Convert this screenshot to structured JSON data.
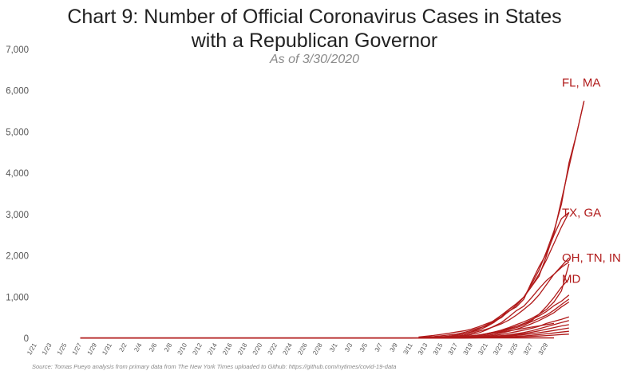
{
  "chart_data": {
    "type": "line",
    "title_lines": [
      "Chart 9: Number of Official Coronavirus Cases in States",
      "with a Republican Governor"
    ],
    "subtitle": "As of 3/30/2020",
    "source": "Source: Tomas Pueyo analysis from primary data from The New York Times uploaded to Github: https://github.com/nytimes/covid-19-data",
    "x_categories": [
      "1/21",
      "1/22",
      "1/23",
      "1/24",
      "1/25",
      "1/26",
      "1/27",
      "1/28",
      "1/29",
      "1/30",
      "1/31",
      "2/1",
      "2/2",
      "2/3",
      "2/4",
      "2/5",
      "2/6",
      "2/7",
      "2/8",
      "2/9",
      "2/10",
      "2/11",
      "2/12",
      "2/13",
      "2/14",
      "2/15",
      "2/16",
      "2/17",
      "2/18",
      "2/19",
      "2/20",
      "2/21",
      "2/22",
      "2/23",
      "2/24",
      "2/25",
      "2/26",
      "2/27",
      "2/28",
      "2/29",
      "3/1",
      "3/2",
      "3/3",
      "3/4",
      "3/5",
      "3/6",
      "3/7",
      "3/8",
      "3/9",
      "3/10",
      "3/11",
      "3/12",
      "3/13",
      "3/14",
      "3/15",
      "3/16",
      "3/17",
      "3/18",
      "3/19",
      "3/20",
      "3/21",
      "3/22",
      "3/23",
      "3/24",
      "3/25",
      "3/26",
      "3/27",
      "3/28",
      "3/29",
      "3/30"
    ],
    "x_tick_labels": [
      "1/21",
      "1/23",
      "1/25",
      "1/27",
      "1/29",
      "1/31",
      "2/2",
      "2/4",
      "2/6",
      "2/8",
      "2/10",
      "2/12",
      "2/14",
      "2/16",
      "2/18",
      "2/20",
      "2/22",
      "2/24",
      "2/26",
      "2/28",
      "3/1",
      "3/3",
      "3/5",
      "3/7",
      "3/9",
      "3/11",
      "3/13",
      "3/15",
      "3/17",
      "3/19",
      "3/21",
      "3/23",
      "3/25",
      "3/27",
      "3/29"
    ],
    "y_ticks": [
      0,
      1000,
      2000,
      3000,
      4000,
      5000,
      6000,
      7000
    ],
    "y_tick_labels": [
      "0",
      "1,000",
      "2,000",
      "3,000",
      "4,000",
      "5,000",
      "6,000",
      "7,000"
    ],
    "ylim": [
      0,
      7000
    ],
    "grid": false,
    "line_color": "#b01a1a",
    "annotations": [
      {
        "text": "FL, MA",
        "value": 6200
      },
      {
        "text": "TX, GA",
        "value": 3050
      },
      {
        "text": "OH, TN, IN",
        "value": 1950
      },
      {
        "text": "MD",
        "value": 1440
      }
    ],
    "series": [
      {
        "start": 51,
        "values": [
          10,
          15,
          20,
          30,
          45,
          70,
          110,
          160,
          230,
          320,
          430,
          560,
          700,
          830,
          1000,
          1250,
          1500,
          2000,
          2550,
          3350,
          4150,
          4950,
          5750
        ]
      },
      {
        "start": 51,
        "values": [
          30,
          50,
          70,
          95,
          120,
          150,
          180,
          220,
          280,
          350,
          420,
          520,
          650,
          800,
          1000,
          1300,
          1650,
          2100,
          2600,
          3250,
          4250,
          4950,
          5750
        ]
      },
      {
        "start": 51,
        "values": [
          20,
          30,
          40,
          60,
          80,
          100,
          140,
          190,
          250,
          300,
          400,
          500,
          660,
          760,
          950,
          1350,
          1730,
          2050,
          2500,
          2900,
          3050
        ]
      },
      {
        "start": 51,
        "values": [
          10,
          15,
          25,
          35,
          50,
          80,
          110,
          150,
          200,
          280,
          380,
          520,
          700,
          840,
          1000,
          1250,
          1550,
          1900,
          2300,
          2700,
          3050
        ]
      },
      {
        "start": 51,
        "values": [
          5,
          10,
          15,
          20,
          30,
          50,
          80,
          120,
          170,
          220,
          280,
          350,
          440,
          560,
          700,
          850,
          1050,
          1300,
          1550,
          1750,
          1950
        ]
      },
      {
        "start": 51,
        "values": [
          5,
          10,
          15,
          20,
          30,
          40,
          60,
          90,
          130,
          200,
          290,
          380,
          520,
          670,
          780,
          980,
          1200,
          1400,
          1550,
          1720,
          1850
        ]
      },
      {
        "start": 51,
        "values": [
          5,
          8,
          12,
          16,
          22,
          30,
          40,
          55,
          80,
          110,
          150,
          200,
          260,
          330,
          400,
          480,
          580,
          700,
          880,
          1150,
          1800
        ]
      },
      {
        "start": 51,
        "values": [
          5,
          10,
          15,
          20,
          25,
          30,
          40,
          60,
          80,
          110,
          150,
          190,
          240,
          290,
          350,
          420,
          580,
          770,
          990,
          1240,
          1440
        ]
      },
      {
        "start": 51,
        "values": [
          5,
          8,
          10,
          15,
          20,
          25,
          35,
          50,
          70,
          100,
          140,
          180,
          230,
          290,
          360,
          450,
          540,
          650,
          790,
          900,
          1050
        ]
      },
      {
        "start": 51,
        "values": [
          5,
          8,
          10,
          12,
          18,
          25,
          35,
          50,
          70,
          95,
          130,
          170,
          210,
          260,
          320,
          400,
          480,
          560,
          680,
          820,
          950
        ]
      },
      {
        "start": 51,
        "values": [
          3,
          5,
          8,
          10,
          14,
          18,
          25,
          35,
          50,
          70,
          95,
          130,
          170,
          220,
          280,
          350,
          430,
          520,
          620,
          760,
          880
        ]
      },
      {
        "start": 51,
        "values": [
          2,
          4,
          6,
          8,
          10,
          14,
          18,
          25,
          35,
          50,
          70,
          95,
          125,
          160,
          200,
          240,
          290,
          360,
          410,
          460,
          520
        ]
      },
      {
        "start": 51,
        "values": [
          2,
          3,
          5,
          7,
          9,
          12,
          15,
          20,
          28,
          38,
          50,
          65,
          85,
          110,
          140,
          180,
          230,
          280,
          330,
          380,
          430
        ]
      },
      {
        "start": 51,
        "values": [
          2,
          3,
          4,
          5,
          7,
          9,
          12,
          16,
          22,
          30,
          40,
          55,
          70,
          90,
          115,
          145,
          180,
          220,
          260,
          300,
          330
        ]
      },
      {
        "start": 51,
        "values": [
          1,
          2,
          3,
          4,
          6,
          8,
          10,
          14,
          18,
          24,
          32,
          42,
          55,
          70,
          90,
          110,
          135,
          160,
          190,
          220,
          250
        ]
      },
      {
        "start": 51,
        "values": [
          1,
          2,
          2,
          3,
          4,
          5,
          7,
          9,
          12,
          16,
          22,
          28,
          36,
          46,
          58,
          72,
          90,
          108,
          130,
          150,
          170
        ]
      },
      {
        "start": 51,
        "values": [
          1,
          1,
          2,
          2,
          3,
          4,
          5,
          7,
          9,
          12,
          15,
          19,
          24,
          30,
          38,
          46,
          55,
          65,
          78,
          90,
          100
        ]
      },
      {
        "start": 6,
        "values": [
          1,
          1,
          1,
          1,
          1,
          1,
          1,
          1,
          1,
          1,
          1,
          1,
          1,
          1,
          1,
          1,
          1,
          1,
          1,
          1,
          1,
          1,
          1,
          1,
          1,
          1,
          1,
          1,
          1,
          1,
          1,
          1,
          1,
          1,
          1,
          1,
          1,
          1,
          1,
          1,
          1,
          1,
          1,
          2,
          3,
          5,
          7,
          10,
          15,
          22,
          30,
          45,
          60,
          80,
          100,
          125,
          150,
          180,
          210,
          240,
          270,
          300,
          330,
          360
        ]
      }
    ]
  }
}
